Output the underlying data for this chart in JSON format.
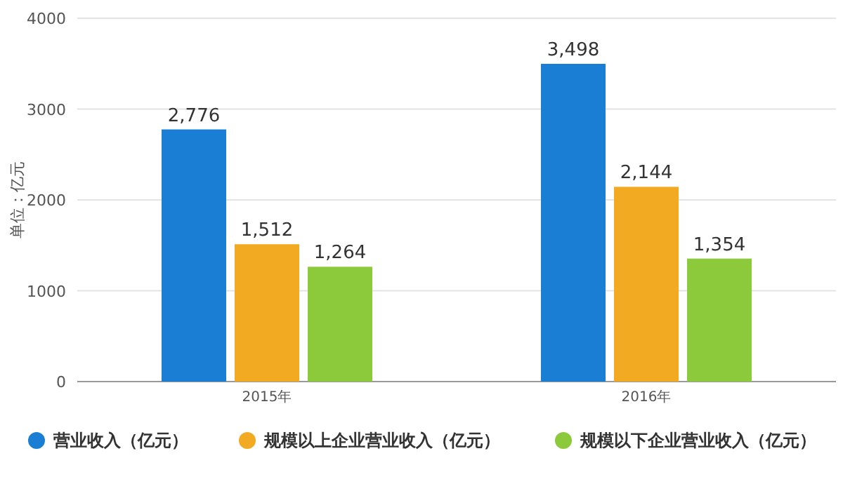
{
  "chart_data": {
    "type": "bar",
    "ylabel": "单位：亿元",
    "categories": [
      "2015年",
      "2016年"
    ],
    "ylim": [
      0,
      4000
    ],
    "yticks": [
      0,
      1000,
      2000,
      3000,
      4000
    ],
    "grid": "y",
    "legend": "bottom",
    "series": [
      {
        "name": "营业收入（亿元）",
        "color": "#1a7fd4",
        "values": [
          2776,
          3498
        ],
        "value_labels": [
          "2,776",
          "3,498"
        ]
      },
      {
        "name": "规模以上企业营业收入（亿元）",
        "color": "#f2aa22",
        "values": [
          1512,
          2144
        ],
        "value_labels": [
          "1,512",
          "2,144"
        ]
      },
      {
        "name": "规模以下企业营业收入（亿元）",
        "color": "#8cc93b",
        "values": [
          1264,
          1354
        ],
        "value_labels": [
          "1,264",
          "1,354"
        ]
      }
    ]
  }
}
